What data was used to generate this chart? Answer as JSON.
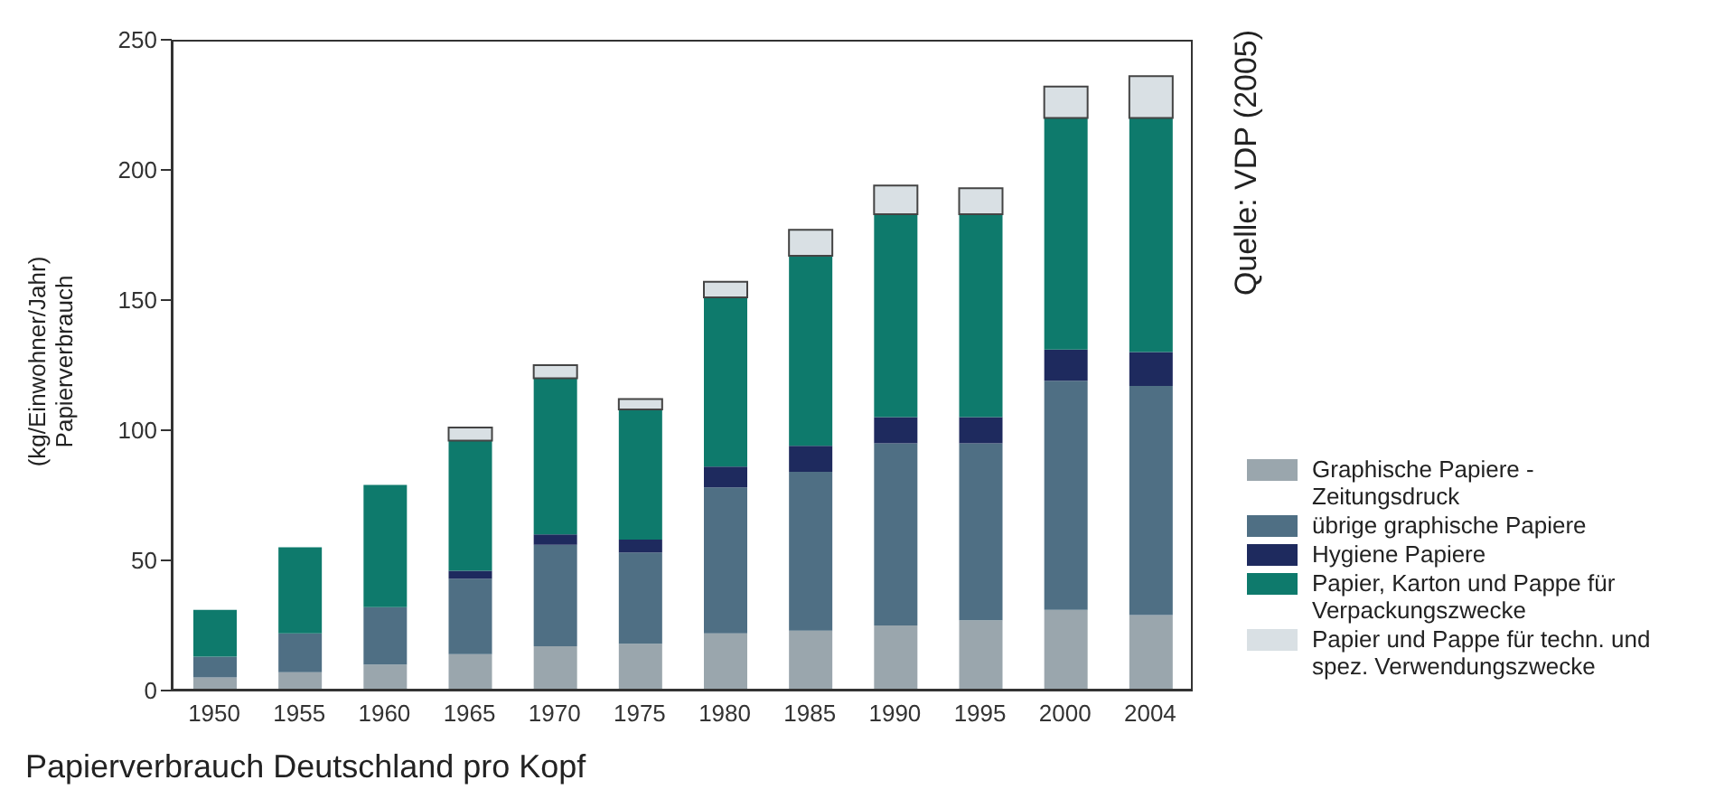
{
  "chart_data": {
    "type": "bar",
    "stacked": true,
    "title": "Papierverbrauch Deutschland pro Kopf",
    "ylabel": "(kg/Einwohner/Jahr)\nPapierverbrauch",
    "annotations": [
      "Quelle: VDP (2005)"
    ],
    "categories": [
      "1950",
      "1955",
      "1960",
      "1965",
      "1970",
      "1975",
      "1980",
      "1985",
      "1990",
      "1995",
      "2000",
      "2004"
    ],
    "ylim": [
      0,
      250
    ],
    "yticks": [
      0,
      50,
      100,
      150,
      200,
      250
    ],
    "grid": false,
    "legend": "right",
    "series": [
      {
        "name": "Graphische Papiere - Zeitungsdruck",
        "color": "#9aa6ad",
        "values": [
          5,
          7,
          10,
          14,
          17,
          18,
          22,
          23,
          25,
          27,
          31,
          29
        ]
      },
      {
        "name": "übrige graphische Papiere",
        "color": "#4f6f84",
        "values": [
          8,
          15,
          22,
          29,
          39,
          35,
          56,
          61,
          70,
          68,
          88,
          88
        ]
      },
      {
        "name": "Hygiene Papiere",
        "color": "#1e2a5e",
        "values": [
          0,
          0,
          0,
          3,
          4,
          5,
          8,
          10,
          10,
          10,
          12,
          13
        ]
      },
      {
        "name": "Papier, Karton und Pappe für Verpackungszwecke",
        "color": "#0e7a6c",
        "values": [
          18,
          33,
          47,
          50,
          60,
          50,
          65,
          73,
          78,
          78,
          89,
          90
        ]
      },
      {
        "name": "Papier und Pappe für techn. und spez. Verwendungszwecke",
        "color": "#d9e0e4",
        "values": [
          0,
          0,
          0,
          5,
          5,
          4,
          6,
          10,
          11,
          10,
          12,
          16
        ]
      }
    ]
  }
}
